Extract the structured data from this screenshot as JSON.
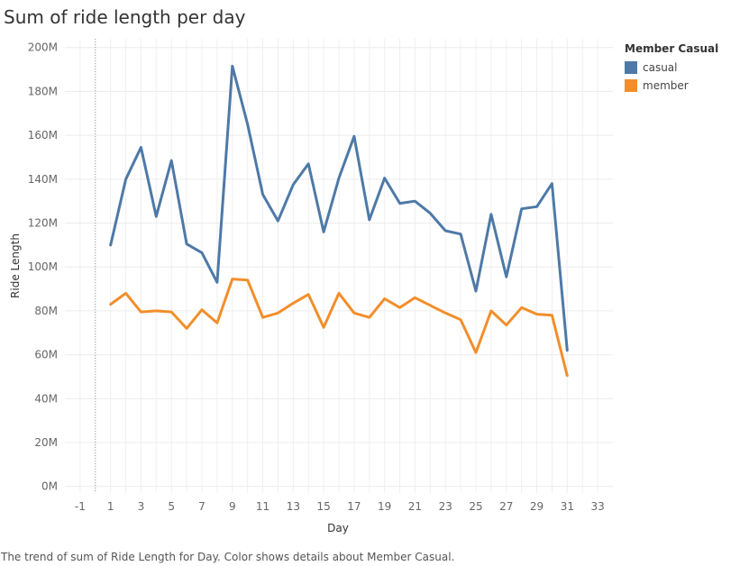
{
  "title": "Sum of ride length per day",
  "caption": "The trend of sum of Ride Length for Day.  Color shows details about Member Casual.",
  "chart_data": {
    "type": "line",
    "title": "Sum of ride length per day",
    "xlabel": "Day",
    "ylabel": "Ride Length",
    "xlim": [
      -2,
      34
    ],
    "ylim": [
      -3,
      204
    ],
    "x_ticks": [
      "-1",
      "1",
      "3",
      "5",
      "7",
      "9",
      "11",
      "13",
      "15",
      "17",
      "19",
      "21",
      "23",
      "25",
      "27",
      "29",
      "31",
      "33"
    ],
    "y_ticks": [
      "0M",
      "20M",
      "40M",
      "60M",
      "80M",
      "100M",
      "120M",
      "140M",
      "160M",
      "180M",
      "200M"
    ],
    "grid": true,
    "legend": {
      "title": "Member Casual",
      "position": "right"
    },
    "series": [
      {
        "name": "casual",
        "color": "#4e79a7",
        "x": [
          1,
          2,
          3,
          4,
          5,
          6,
          7,
          8,
          9,
          10,
          11,
          12,
          13,
          14,
          15,
          16,
          17,
          18,
          19,
          20,
          21,
          22,
          23,
          24,
          25,
          26,
          27,
          28,
          29,
          30,
          31
        ],
        "values": [
          110,
          140,
          154.5,
          123,
          148.5,
          110.5,
          106.5,
          93,
          191.5,
          165,
          133,
          121,
          137.5,
          147,
          116,
          140.5,
          159.5,
          121.5,
          140.5,
          129,
          130,
          124.5,
          116.5,
          115,
          89,
          124,
          95.5,
          126.5,
          127.5,
          138,
          62
        ]
      },
      {
        "name": "member",
        "color": "#f28e2b",
        "x": [
          1,
          2,
          3,
          4,
          5,
          6,
          7,
          8,
          9,
          10,
          11,
          12,
          13,
          14,
          15,
          16,
          17,
          18,
          19,
          20,
          21,
          22,
          23,
          24,
          25,
          26,
          27,
          28,
          29,
          30,
          31
        ],
        "values": [
          83,
          88,
          79.5,
          80,
          79.5,
          72,
          80.5,
          74.5,
          94.5,
          94,
          77,
          79,
          83.5,
          87.5,
          72.5,
          88,
          79,
          77,
          85.5,
          81.5,
          86,
          82.5,
          79,
          76,
          61,
          80,
          73.5,
          81.5,
          78.5,
          78,
          50.5
        ]
      }
    ]
  }
}
